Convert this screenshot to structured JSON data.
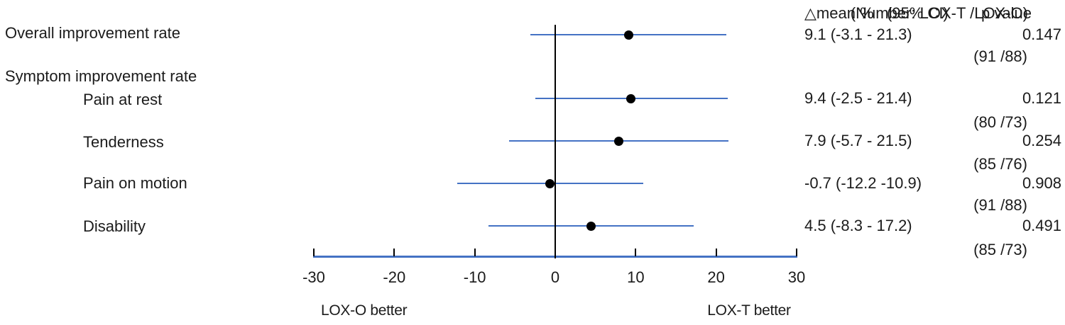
{
  "chart_data": {
    "type": "forest",
    "title_note": "(Number: LOX-T /LOX-O)",
    "column_headers": {
      "mean_ci": "△mean %   (95% CI)",
      "p_value": "p value"
    },
    "axis": {
      "min": -30,
      "max": 30,
      "ticks": [
        -30,
        -20,
        -10,
        0,
        10,
        20,
        30
      ],
      "zero_line": 0
    },
    "footer": {
      "left": "LOX-O better",
      "right": "LOX-T better"
    },
    "rows": [
      {
        "type": "data",
        "label": "Overall improvement rate",
        "indent": 0,
        "n_note": "(91 /88)",
        "mean": 9.1,
        "ci_low": -3.1,
        "ci_high": 21.3,
        "mean_ci_text": "9.1 (-3.1 - 21.3)",
        "p_text": "0.147"
      },
      {
        "type": "section",
        "label": "Symptom improvement rate"
      },
      {
        "type": "data",
        "label": "Pain at rest",
        "indent": 1,
        "n_note": "(80 /73)",
        "mean": 9.4,
        "ci_low": -2.5,
        "ci_high": 21.4,
        "mean_ci_text": "9.4 (-2.5 - 21.4)",
        "p_text": "0.121"
      },
      {
        "type": "data",
        "label": "Tenderness",
        "indent": 1,
        "n_note": "(85 /76)",
        "mean": 7.9,
        "ci_low": -5.7,
        "ci_high": 21.5,
        "mean_ci_text": "7.9 (-5.7 - 21.5)",
        "p_text": "0.254"
      },
      {
        "type": "data",
        "label": "Pain on motion",
        "indent": 1,
        "n_note": "(91 /88)",
        "mean": -0.7,
        "ci_low": -12.2,
        "ci_high": 10.9,
        "mean_ci_text": "-0.7 (-12.2 -10.9)",
        "p_text": "0.908"
      },
      {
        "type": "data",
        "label": "Disability",
        "indent": 1,
        "n_note": "(85 /73)",
        "mean": 4.5,
        "ci_low": -8.3,
        "ci_high": 17.2,
        "mean_ci_text": "4.5 (-8.3 - 17.2)",
        "p_text": "0.491"
      }
    ],
    "colors": {
      "ci_line": "#4472c4",
      "axis_line": "#4472c4",
      "marker": "#000000",
      "zero_line": "#000000",
      "text": "#1b1b1b"
    }
  }
}
